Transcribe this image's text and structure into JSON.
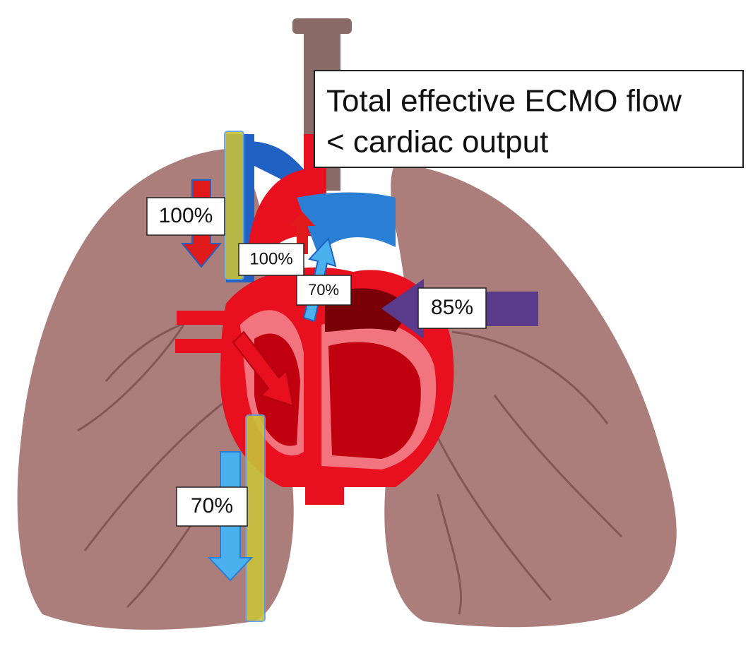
{
  "title": {
    "lines": [
      "Total effective ECMO flow",
      "< cardiac output"
    ]
  },
  "labels": [
    {
      "text": "100%"
    },
    {
      "text": "100%"
    },
    {
      "text": "70%"
    },
    {
      "text": "85%"
    },
    {
      "text": "70%"
    }
  ]
}
